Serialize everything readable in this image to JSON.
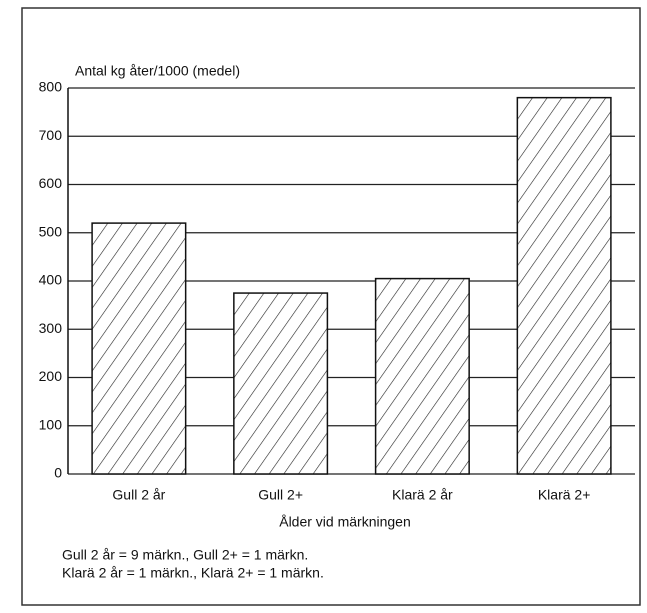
{
  "chart_data": {
    "type": "bar",
    "y_label": "Antal kg åter/1000 (medel)",
    "x_label": "Ålder vid märkningen",
    "categories": [
      "Gull 2 år",
      "Gull 2+",
      "Klarä 2 år",
      "Klarä 2+"
    ],
    "values": [
      520,
      375,
      405,
      780
    ],
    "color": "#111111",
    "ylim": [
      0,
      800
    ],
    "yticks": [
      0,
      100,
      200,
      300,
      400,
      500,
      600,
      700,
      800
    ],
    "grid": true,
    "annotations": [
      "Gull 2 år = 9 märkn., Gull 2+ = 1 märkn.",
      "Klarä 2 år = 1 märkn., Klarä 2+ = 1 märkn."
    ]
  }
}
